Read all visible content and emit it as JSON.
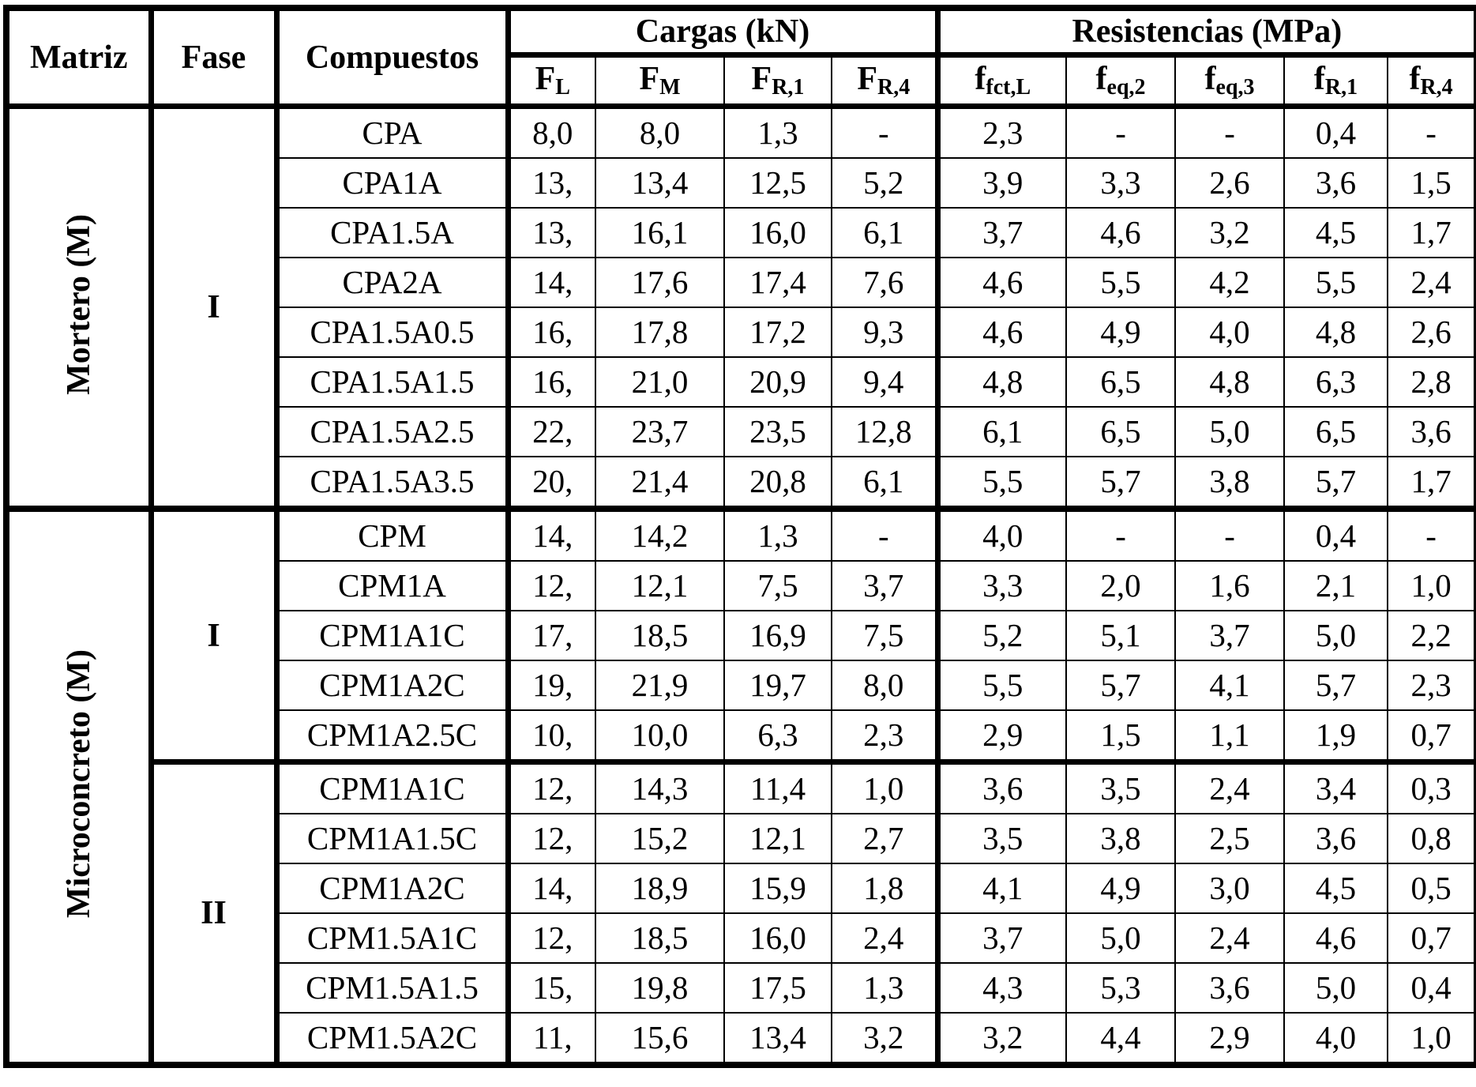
{
  "headers": {
    "matriz": "Matriz",
    "fase": "Fase",
    "compuestos": "Compuestos",
    "cargas": "Cargas (kN)",
    "resistencias": "Resistencias (MPa)",
    "cargas_cols": [
      {
        "main": "F",
        "sub": "L"
      },
      {
        "main": "F",
        "sub": "M"
      },
      {
        "main": "F",
        "sub": "R,1"
      },
      {
        "main": "F",
        "sub": "R,4"
      }
    ],
    "resist_cols": [
      {
        "main": "f",
        "sub": "fct,L"
      },
      {
        "main": "f",
        "sub": "eq,2"
      },
      {
        "main": "f",
        "sub": "eq,3"
      },
      {
        "main": "f",
        "sub": "R,1"
      },
      {
        "main": "f",
        "sub": "R,4"
      }
    ]
  },
  "groups": [
    {
      "matrix": "Mortero (M)",
      "phases": [
        {
          "phase": "I",
          "rows": [
            [
              "CPA",
              "8,0",
              "8,0",
              "1,3",
              "-",
              "2,3",
              "-",
              "-",
              "0,4",
              "-"
            ],
            [
              "CPA1A",
              "13,",
              "13,4",
              "12,5",
              "5,2",
              "3,9",
              "3,3",
              "2,6",
              "3,6",
              "1,5"
            ],
            [
              "CPA1.5A",
              "13,",
              "16,1",
              "16,0",
              "6,1",
              "3,7",
              "4,6",
              "3,2",
              "4,5",
              "1,7"
            ],
            [
              "CPA2A",
              "14,",
              "17,6",
              "17,4",
              "7,6",
              "4,6",
              "5,5",
              "4,2",
              "5,5",
              "2,4"
            ],
            [
              "CPA1.5A0.5",
              "16,",
              "17,8",
              "17,2",
              "9,3",
              "4,6",
              "4,9",
              "4,0",
              "4,8",
              "2,6"
            ],
            [
              "CPA1.5A1.5",
              "16,",
              "21,0",
              "20,9",
              "9,4",
              "4,8",
              "6,5",
              "4,8",
              "6,3",
              "2,8"
            ],
            [
              "CPA1.5A2.5",
              "22,",
              "23,7",
              "23,5",
              "12,8",
              "6,1",
              "6,5",
              "5,0",
              "6,5",
              "3,6"
            ],
            [
              "CPA1.5A3.5",
              "20,",
              "21,4",
              "20,8",
              "6,1",
              "5,5",
              "5,7",
              "3,8",
              "5,7",
              "1,7"
            ]
          ]
        }
      ]
    },
    {
      "matrix": "Microconcreto (M)",
      "phases": [
        {
          "phase": "I",
          "rows": [
            [
              "CPM",
              "14,",
              "14,2",
              "1,3",
              "-",
              "4,0",
              "-",
              "-",
              "0,4",
              "-"
            ],
            [
              "CPM1A",
              "12,",
              "12,1",
              "7,5",
              "3,7",
              "3,3",
              "2,0",
              "1,6",
              "2,1",
              "1,0"
            ],
            [
              "CPM1A1C",
              "17,",
              "18,5",
              "16,9",
              "7,5",
              "5,2",
              "5,1",
              "3,7",
              "5,0",
              "2,2"
            ],
            [
              "CPM1A2C",
              "19,",
              "21,9",
              "19,7",
              "8,0",
              "5,5",
              "5,7",
              "4,1",
              "5,7",
              "2,3"
            ],
            [
              "CPM1A2.5C",
              "10,",
              "10,0",
              "6,3",
              "2,3",
              "2,9",
              "1,5",
              "1,1",
              "1,9",
              "0,7"
            ]
          ]
        },
        {
          "phase": "II",
          "rows": [
            [
              "CPM1A1C",
              "12,",
              "14,3",
              "11,4",
              "1,0",
              "3,6",
              "3,5",
              "2,4",
              "3,4",
              "0,3"
            ],
            [
              "CPM1A1.5C",
              "12,",
              "15,2",
              "12,1",
              "2,7",
              "3,5",
              "3,8",
              "2,5",
              "3,6",
              "0,8"
            ],
            [
              "CPM1A2C",
              "14,",
              "18,9",
              "15,9",
              "1,8",
              "4,1",
              "4,9",
              "3,0",
              "4,5",
              "0,5"
            ],
            [
              "CPM1.5A1C",
              "12,",
              "18,5",
              "16,0",
              "2,4",
              "3,7",
              "5,0",
              "2,4",
              "4,6",
              "0,7"
            ],
            [
              "CPM1.5A1.5",
              "15,",
              "19,8",
              "17,5",
              "1,3",
              "4,3",
              "5,3",
              "3,6",
              "5,0",
              "0,4"
            ],
            [
              "CPM1.5A2C",
              "11,",
              "15,6",
              "13,4",
              "3,2",
              "3,2",
              "4,4",
              "2,9",
              "4,0",
              "1,0"
            ]
          ]
        }
      ]
    }
  ]
}
